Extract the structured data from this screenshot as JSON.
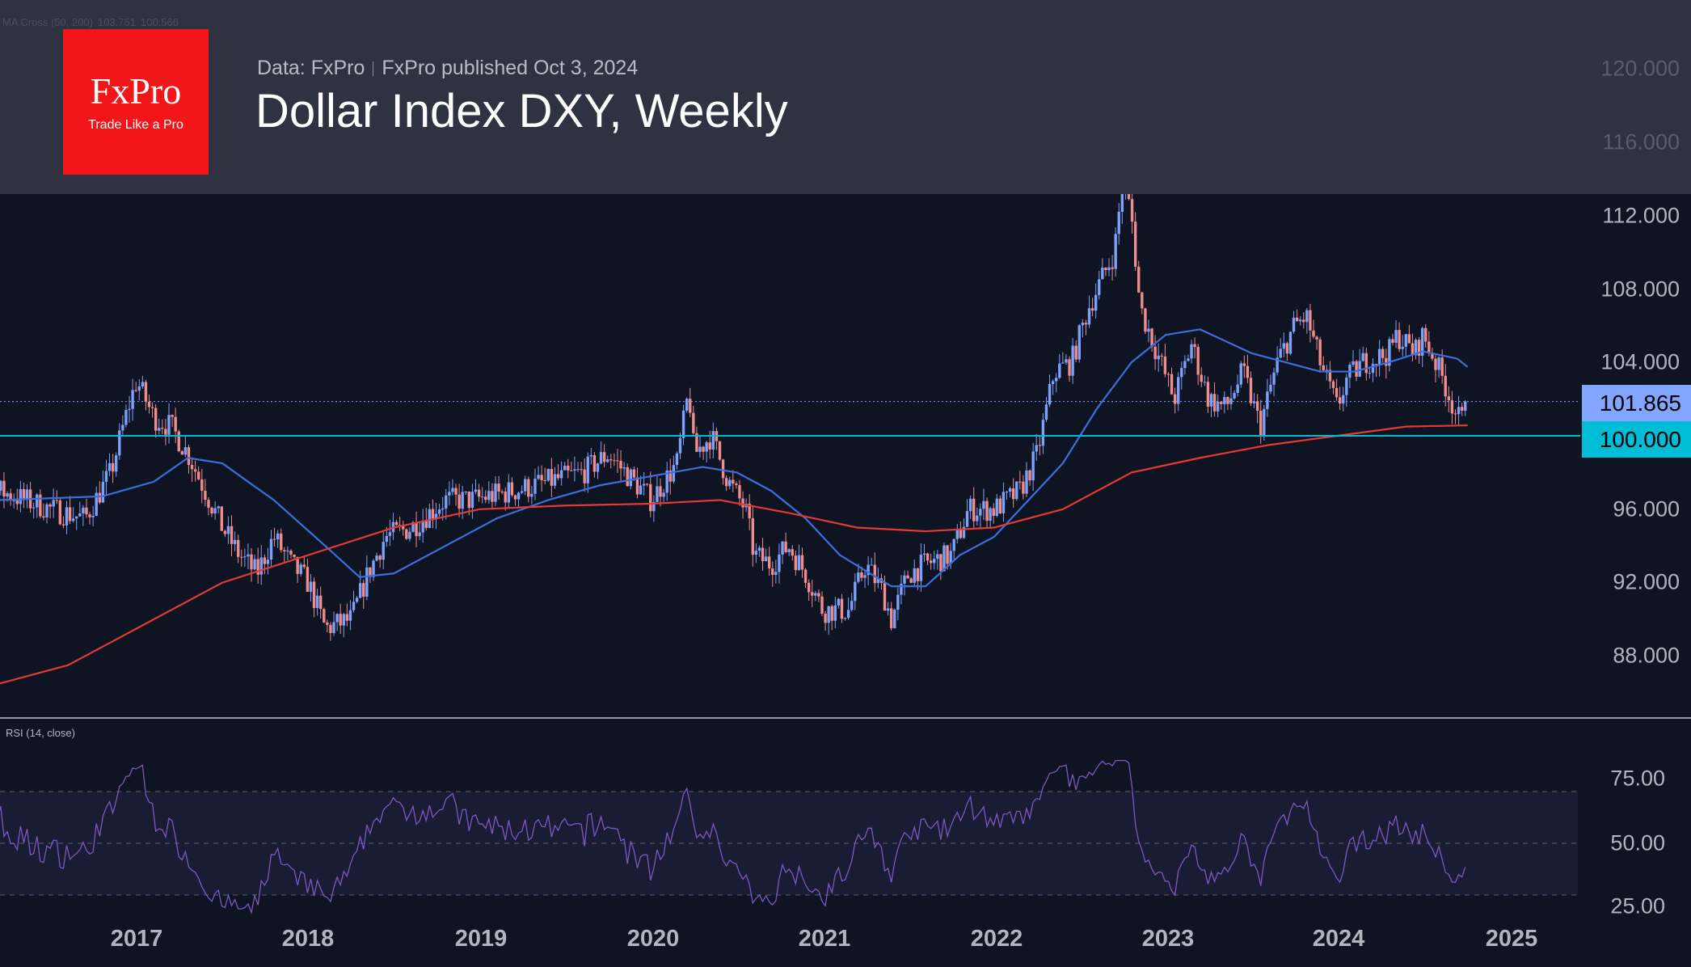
{
  "header": {
    "data_source": "Data: FxPro",
    "published": "FxPro published Oct 3, 2024",
    "title": "Dollar Index DXY, Weekly",
    "logo_brand": "FxPro",
    "logo_tagline": "Trade Like a Pro",
    "ma_legend": {
      "label": "MA Cross (50, 200)",
      "ma50": "103.751",
      "ma200": "100.566"
    }
  },
  "colors": {
    "up": "#7da0fa",
    "down": "#f08c8c",
    "ma50": "#3b6fe0",
    "ma200": "#e53935",
    "level": "#00bcd4",
    "last": "#82a5ff",
    "rsi": "#7e57c2"
  },
  "chart_data": [
    {
      "type": "candlestick",
      "title": "Dollar Index DXY, Weekly",
      "x_unit": "year",
      "xlim": [
        2016.2,
        2025.5
      ],
      "ylim": [
        85,
        121
      ],
      "y_ticks": [
        "120.000",
        "116.000",
        "112.000",
        "108.000",
        "104.000",
        "96.000",
        "92.000",
        "88.000"
      ],
      "x_ticks": [
        "2017",
        "2018",
        "2019",
        "2020",
        "2021",
        "2022",
        "2023",
        "2024",
        "2025"
      ],
      "last_price": "101.865",
      "horizontal_level": "100.000",
      "price_path": [
        [
          2015.9,
          97
        ],
        [
          2016.2,
          97
        ],
        [
          2016.5,
          96
        ],
        [
          2016.7,
          95.5
        ],
        [
          2016.85,
          98
        ],
        [
          2016.95,
          101.5
        ],
        [
          2017.0,
          103
        ],
        [
          2017.1,
          101
        ],
        [
          2017.2,
          100.5
        ],
        [
          2017.3,
          99
        ],
        [
          2017.4,
          97
        ],
        [
          2017.5,
          95
        ],
        [
          2017.6,
          93.5
        ],
        [
          2017.7,
          92.5
        ],
        [
          2017.8,
          94.5
        ],
        [
          2017.9,
          93
        ],
        [
          2018.0,
          92
        ],
        [
          2018.1,
          89.5
        ],
        [
          2018.25,
          90
        ],
        [
          2018.35,
          92.5
        ],
        [
          2018.45,
          94.5
        ],
        [
          2018.6,
          95
        ],
        [
          2018.8,
          96.5
        ],
        [
          2018.95,
          96.5
        ],
        [
          2019.2,
          97
        ],
        [
          2019.4,
          97.5
        ],
        [
          2019.6,
          98
        ],
        [
          2019.75,
          99
        ],
        [
          2019.9,
          97.5
        ],
        [
          2020.0,
          96.5
        ],
        [
          2020.15,
          98.5
        ],
        [
          2020.22,
          102.5
        ],
        [
          2020.25,
          99
        ],
        [
          2020.35,
          100
        ],
        [
          2020.45,
          97.5
        ],
        [
          2020.55,
          96
        ],
        [
          2020.6,
          93.5
        ],
        [
          2020.7,
          93
        ],
        [
          2020.8,
          94
        ],
        [
          2020.9,
          92.5
        ],
        [
          2021.0,
          90.5
        ],
        [
          2021.15,
          90.5
        ],
        [
          2021.25,
          93
        ],
        [
          2021.35,
          91.5
        ],
        [
          2021.4,
          90
        ],
        [
          2021.5,
          92.5
        ],
        [
          2021.6,
          93
        ],
        [
          2021.75,
          93.5
        ],
        [
          2021.85,
          96
        ],
        [
          2022.0,
          96
        ],
        [
          2022.15,
          97
        ],
        [
          2022.25,
          99
        ],
        [
          2022.35,
          103.5
        ],
        [
          2022.45,
          104
        ],
        [
          2022.55,
          107
        ],
        [
          2022.7,
          110
        ],
        [
          2022.75,
          114
        ],
        [
          2022.8,
          112
        ],
        [
          2022.85,
          107
        ],
        [
          2022.95,
          104.5
        ],
        [
          2023.05,
          102
        ],
        [
          2023.15,
          105
        ],
        [
          2023.25,
          102
        ],
        [
          2023.35,
          101.5
        ],
        [
          2023.45,
          103.5
        ],
        [
          2023.55,
          100.5
        ],
        [
          2023.65,
          104
        ],
        [
          2023.75,
          106
        ],
        [
          2023.82,
          106.5
        ],
        [
          2023.9,
          104
        ],
        [
          2024.0,
          101.5
        ],
        [
          2024.05,
          103
        ],
        [
          2024.15,
          104
        ],
        [
          2024.3,
          104.5
        ],
        [
          2024.35,
          105.5
        ],
        [
          2024.45,
          104.5
        ],
        [
          2024.5,
          105.5
        ],
        [
          2024.55,
          104.5
        ],
        [
          2024.62,
          103
        ],
        [
          2024.7,
          101
        ],
        [
          2024.73,
          100.8
        ],
        [
          2024.76,
          101.865
        ]
      ],
      "series": [
        {
          "name": "MA 50",
          "points": [
            [
              2016.2,
              96.5
            ],
            [
              2016.8,
              96.7
            ],
            [
              2017.1,
              97.5
            ],
            [
              2017.3,
              98.8
            ],
            [
              2017.5,
              98.5
            ],
            [
              2017.8,
              96.5
            ],
            [
              2018.1,
              94
            ],
            [
              2018.3,
              92.3
            ],
            [
              2018.5,
              92.5
            ],
            [
              2018.8,
              94
            ],
            [
              2019.1,
              95.5
            ],
            [
              2019.4,
              96.5
            ],
            [
              2019.7,
              97.3
            ],
            [
              2020.0,
              97.8
            ],
            [
              2020.3,
              98.3
            ],
            [
              2020.5,
              98
            ],
            [
              2020.7,
              97
            ],
            [
              2020.9,
              95.5
            ],
            [
              2021.1,
              93.5
            ],
            [
              2021.4,
              91.8
            ],
            [
              2021.6,
              91.8
            ],
            [
              2021.8,
              93.5
            ],
            [
              2022.0,
              94.5
            ],
            [
              2022.2,
              96.5
            ],
            [
              2022.4,
              98.5
            ],
            [
              2022.6,
              101.5
            ],
            [
              2022.8,
              104
            ],
            [
              2023.0,
              105.5
            ],
            [
              2023.2,
              105.8
            ],
            [
              2023.5,
              104.5
            ],
            [
              2023.7,
              104
            ],
            [
              2023.9,
              103.5
            ],
            [
              2024.1,
              103.5
            ],
            [
              2024.3,
              104
            ],
            [
              2024.5,
              104.6
            ],
            [
              2024.7,
              104.2
            ],
            [
              2024.76,
              103.75
            ]
          ]
        },
        {
          "name": "MA 200",
          "points": [
            [
              2016.2,
              86.5
            ],
            [
              2016.6,
              87.5
            ],
            [
              2017.0,
              89.5
            ],
            [
              2017.5,
              92
            ],
            [
              2018.0,
              93.5
            ],
            [
              2018.5,
              95
            ],
            [
              2019.0,
              96
            ],
            [
              2019.5,
              96.2
            ],
            [
              2020.0,
              96.3
            ],
            [
              2020.4,
              96.5
            ],
            [
              2020.8,
              95.8
            ],
            [
              2021.2,
              95
            ],
            [
              2021.6,
              94.8
            ],
            [
              2022.0,
              95
            ],
            [
              2022.4,
              96
            ],
            [
              2022.8,
              98
            ],
            [
              2023.2,
              98.8
            ],
            [
              2023.6,
              99.5
            ],
            [
              2024.0,
              100
            ],
            [
              2024.4,
              100.5
            ],
            [
              2024.76,
              100.57
            ]
          ]
        }
      ]
    },
    {
      "type": "line",
      "title": "RSI (14, close)",
      "ylim": [
        20,
        85
      ],
      "y_ticks": [
        "75.00",
        "50.00",
        "25.00"
      ],
      "band": [
        30,
        70
      ]
    }
  ]
}
